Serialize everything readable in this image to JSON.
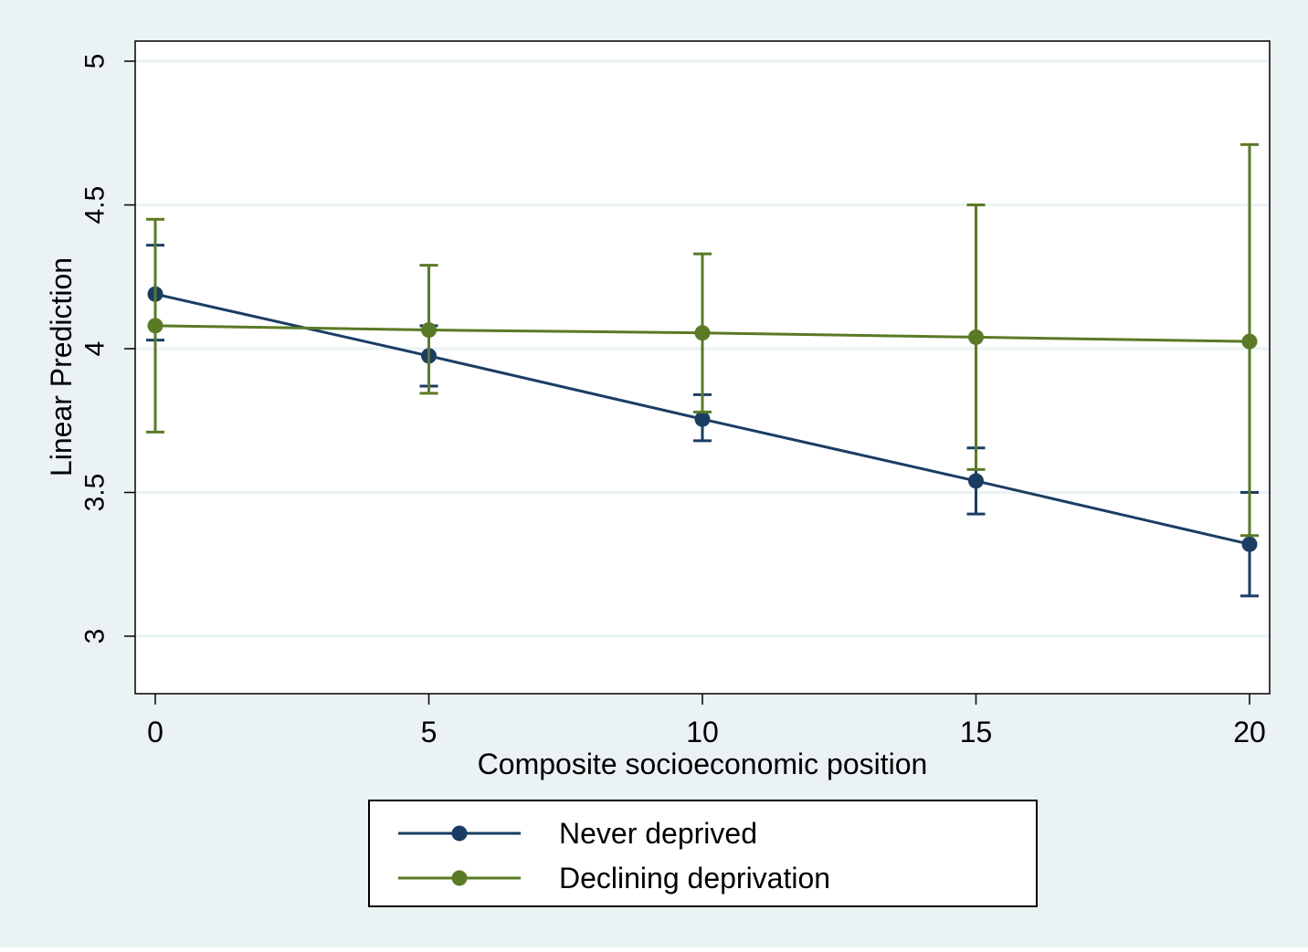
{
  "colors": {
    "background": "#eaf2f3",
    "plot_area": "#ffffff",
    "gridline": "#eaf2f3",
    "never_deprived": "#1a3d64",
    "declining_deprivation": "#5a7a25"
  },
  "chart_data": {
    "type": "line",
    "title": "",
    "xlabel": "Composite socioeconomic position",
    "ylabel": "Linear Prediction",
    "xlim": [
      0,
      20
    ],
    "ylim": [
      2.8,
      5.07
    ],
    "x_ticks": [
      0,
      5,
      10,
      15,
      20
    ],
    "x_tick_labels": [
      "0",
      "5",
      "10",
      "15",
      "20"
    ],
    "y_ticks": [
      3,
      3.5,
      4,
      4.5,
      5
    ],
    "y_tick_labels": [
      "3",
      "3.5",
      "4",
      "4.5",
      "5"
    ],
    "grid": true,
    "legend_position": "bottom",
    "x": [
      0,
      5,
      10,
      15,
      20
    ],
    "series": [
      {
        "name": "Never deprived",
        "values": [
          4.19,
          3.975,
          3.755,
          3.54,
          3.32
        ],
        "ci_lower": [
          4.03,
          3.87,
          3.68,
          3.425,
          3.14
        ],
        "ci_upper": [
          4.36,
          4.08,
          3.84,
          3.655,
          3.5
        ]
      },
      {
        "name": "Declining deprivation",
        "values": [
          4.08,
          4.065,
          4.055,
          4.04,
          4.025
        ],
        "ci_lower": [
          3.71,
          3.845,
          3.78,
          3.58,
          3.35
        ],
        "ci_upper": [
          4.45,
          4.29,
          4.33,
          4.5,
          4.71
        ]
      }
    ]
  }
}
